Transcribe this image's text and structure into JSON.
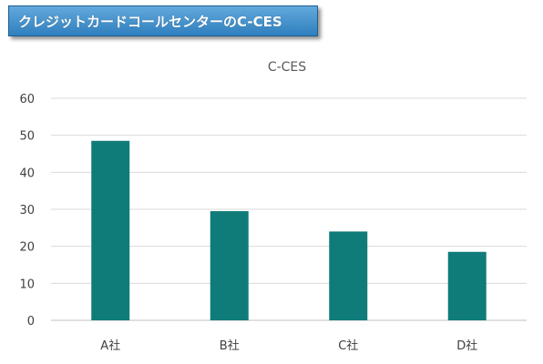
{
  "banner": {
    "title": "クレジットカードコールセンターのC-CES",
    "color": "#3a8bcf"
  },
  "chart_data": {
    "type": "bar",
    "title": "C-CES",
    "xlabel": "",
    "ylabel": "",
    "categories": [
      "A社",
      "B社",
      "C社",
      "D社"
    ],
    "values": [
      48.5,
      29.5,
      24,
      18.5
    ],
    "ylim": [
      0,
      60
    ],
    "yticks": [
      0,
      10,
      20,
      30,
      40,
      50,
      60
    ],
    "grid": true,
    "legend": "none",
    "bar_color": "#107C7A"
  }
}
